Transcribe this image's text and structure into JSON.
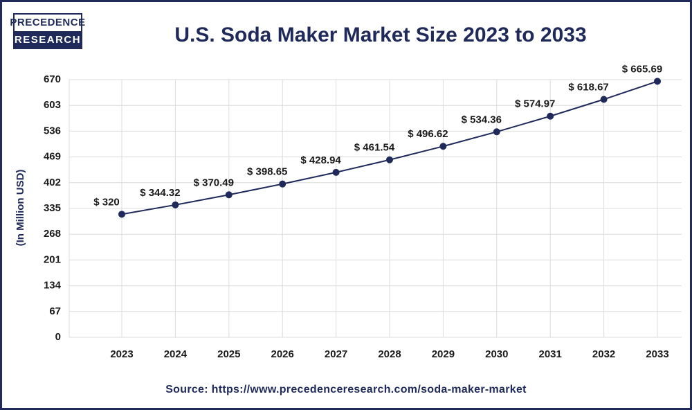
{
  "logo": {
    "line1": "PRECEDENCE",
    "line2": "RESEARCH"
  },
  "chart_data": {
    "type": "line",
    "title": "U.S. Soda Maker Market Size 2023 to 2033",
    "y_label": "(In Million USD)",
    "source": "Source: https://www.precedenceresearch.com/soda-maker-market",
    "categories": [
      "2023",
      "2024",
      "2025",
      "2026",
      "2027",
      "2028",
      "2029",
      "2030",
      "2031",
      "2032",
      "2033"
    ],
    "values": [
      320,
      344.32,
      370.49,
      398.65,
      428.94,
      461.54,
      496.62,
      534.36,
      574.97,
      618.67,
      665.69
    ],
    "value_labels": [
      "$ 320",
      "$ 344.32",
      "$ 370.49",
      "$ 398.65",
      "$ 428.94",
      "$ 461.54",
      "$ 496.62",
      "$ 534.36",
      "$ 574.97",
      "$ 618.67",
      "$ 665.69"
    ],
    "color": "#1f2a5a",
    "ylim": [
      0,
      670
    ],
    "yticks": [
      0,
      67,
      134,
      201,
      268,
      335,
      402,
      469,
      536,
      603,
      670
    ],
    "grid": true
  }
}
